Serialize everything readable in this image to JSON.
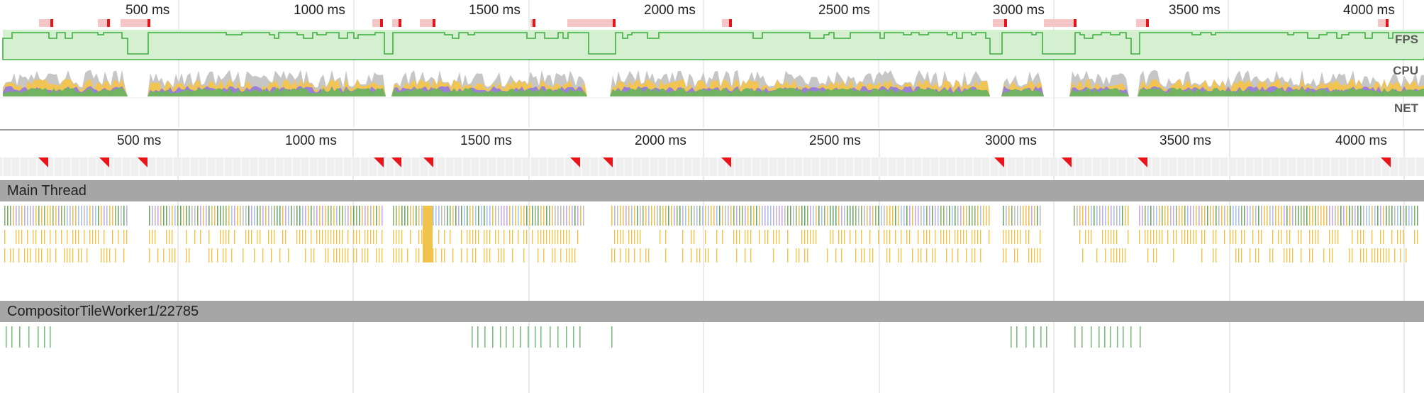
{
  "overview": {
    "ticks": [
      "500 ms",
      "1000 ms",
      "1500 ms",
      "2000 ms",
      "2500 ms",
      "3000 ms",
      "3500 ms",
      "4000 ms"
    ],
    "lanes": {
      "fps": "FPS",
      "cpu": "CPU",
      "net": "NET"
    }
  },
  "ruler": {
    "ticks": [
      "500 ms",
      "1000 ms",
      "1500 ms",
      "2000 ms",
      "2500 ms",
      "3000 ms",
      "3500 ms",
      "4000 ms"
    ]
  },
  "tracks": {
    "main_thread": "Main Thread",
    "compositor": "CompositorTileWorker1/22785"
  },
  "colors": {
    "fps_fill": "#d5f0d0",
    "fps_line": "#3fae3f",
    "cpu_gray": "#c6c6c6",
    "cpu_yellow": "#f1c453",
    "cpu_purple": "#9a7fd6",
    "cpu_green": "#71b363",
    "frame_marker": "#e8141a",
    "frame_marker_bg": "#f6c6c6",
    "track_header": "#a6a6a6"
  }
}
